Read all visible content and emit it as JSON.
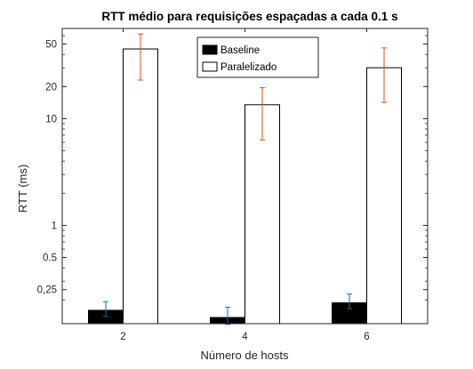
{
  "chart_data": {
    "type": "bar",
    "title": "RTT médio para requisições espaçadas a cada 0.1 s",
    "xlabel": "Número de hosts",
    "ylabel": "RTT (ms)",
    "y_scale": "log",
    "ylim": [
      0.12,
      70
    ],
    "categories": [
      "2",
      "4",
      "6"
    ],
    "y_ticks": [
      {
        "value": 0.25,
        "label": "0,25"
      },
      {
        "value": 0.5,
        "label": "0.5"
      },
      {
        "value": 1,
        "label": "1"
      },
      {
        "value": 10,
        "label": "10"
      },
      {
        "value": 20,
        "label": "20"
      },
      {
        "value": 50,
        "label": "50"
      }
    ],
    "series": [
      {
        "name": "Baseline",
        "color": "#000000",
        "values": [
          0.16,
          0.137,
          0.188
        ],
        "err_low": [
          0.14,
          0.118,
          0.166
        ],
        "err_high": [
          0.193,
          0.171,
          0.227
        ]
      },
      {
        "name": "Paralelizado",
        "color": "#ffffff",
        "values": [
          45,
          13.5,
          30
        ],
        "err_low": [
          23,
          6.3,
          14.2
        ],
        "err_high": [
          62,
          19.5,
          46
        ]
      }
    ],
    "error_bar_colors": [
      "#0072BD",
      "#D95319"
    ],
    "legend_position": "top-center",
    "grid": false
  }
}
